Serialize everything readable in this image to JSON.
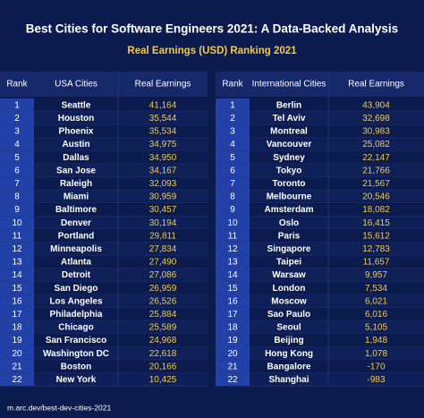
{
  "header": {
    "title": "Best Cities for Software Engineers 2021: A Data-Backed Analysis",
    "subtitle": "Real Earnings (USD) Ranking 2021"
  },
  "tables": [
    {
      "columns": [
        "Rank",
        "USA Cities",
        "Real Earnings"
      ],
      "rows": [
        [
          "1",
          "Seattle",
          "41,164"
        ],
        [
          "2",
          "Houston",
          "35,544"
        ],
        [
          "3",
          "Phoenix",
          "35,534"
        ],
        [
          "4",
          "Austin",
          "34,975"
        ],
        [
          "5",
          "Dallas",
          "34,950"
        ],
        [
          "6",
          "San Jose",
          "34,167"
        ],
        [
          "7",
          "Raleigh",
          "32,093"
        ],
        [
          "8",
          "Miami",
          "30,959"
        ],
        [
          "9",
          "Baltimore",
          "30,457"
        ],
        [
          "10",
          "Denver",
          "30,194"
        ],
        [
          "11",
          "Portland",
          "29,811"
        ],
        [
          "12",
          "Minneapolis",
          "27,834"
        ],
        [
          "13",
          "Atlanta",
          "27,490"
        ],
        [
          "14",
          "Detroit",
          "27,086"
        ],
        [
          "15",
          "San Diego",
          "26,959"
        ],
        [
          "16",
          "Los Angeles",
          "26,526"
        ],
        [
          "17",
          "Philadelphia",
          "25,884"
        ],
        [
          "18",
          "Chicago",
          "25,589"
        ],
        [
          "19",
          "San Francisco",
          "24,968"
        ],
        [
          "20",
          "Washington DC",
          "22,618"
        ],
        [
          "21",
          "Boston",
          "20,166"
        ],
        [
          "22",
          "New York",
          "10,425"
        ]
      ]
    },
    {
      "columns": [
        "Rank",
        "International Cities",
        "Real Earnings"
      ],
      "rows": [
        [
          "1",
          "Berlin",
          "43,904"
        ],
        [
          "2",
          "Tel Aviv",
          "32,698"
        ],
        [
          "3",
          "Montreal",
          "30,983"
        ],
        [
          "4",
          "Vancouver",
          "25,082"
        ],
        [
          "5",
          "Sydney",
          "22,147"
        ],
        [
          "6",
          "Tokyo",
          "21,766"
        ],
        [
          "7",
          "Toronto",
          "21,567"
        ],
        [
          "8",
          "Melbourne",
          "20,546"
        ],
        [
          "9",
          "Amsterdam",
          "18,082"
        ],
        [
          "10",
          "Oslo",
          "16,415"
        ],
        [
          "11",
          "Paris",
          "15,612"
        ],
        [
          "12",
          "Singapore",
          "12,783"
        ],
        [
          "13",
          "Taipei",
          "11,657"
        ],
        [
          "14",
          "Warsaw",
          "9,957"
        ],
        [
          "15",
          "London",
          "7,534"
        ],
        [
          "16",
          "Moscow",
          "6,021"
        ],
        [
          "17",
          "Sao Paulo",
          "6,016"
        ],
        [
          "18",
          "Seoul",
          "5,105"
        ],
        [
          "19",
          "Beijing",
          "1,948"
        ],
        [
          "20",
          "Hong Kong",
          "1,078"
        ],
        [
          "21",
          "Bangalore",
          "-170"
        ],
        [
          "22",
          "Shanghai",
          "-983"
        ]
      ]
    }
  ],
  "footer": "m.arc.dev/best-dev-cities-2021"
}
